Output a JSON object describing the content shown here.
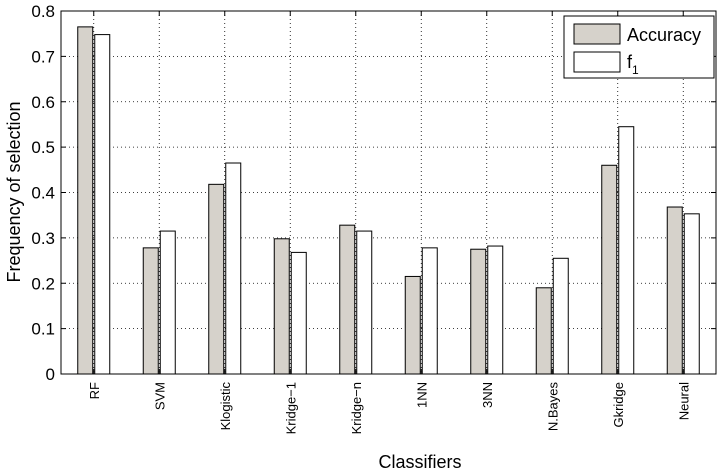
{
  "chart_data": {
    "type": "bar",
    "categories": [
      "RF",
      "SVM",
      "Klogistic",
      "Kridge−1",
      "Kridge−n",
      "1NN",
      "3NN",
      "N.Bayes",
      "Gkridge",
      "Neural"
    ],
    "series": [
      {
        "name": "Accuracy",
        "values": [
          0.765,
          0.278,
          0.418,
          0.298,
          0.328,
          0.215,
          0.275,
          0.19,
          0.46,
          0.368
        ],
        "color": "#d6d2cb"
      },
      {
        "name": "f",
        "name_subscript": "1",
        "values": [
          0.748,
          0.315,
          0.465,
          0.268,
          0.315,
          0.278,
          0.282,
          0.255,
          0.545,
          0.353
        ],
        "color": "#ffffff"
      }
    ],
    "xlabel": "Classifiers",
    "ylabel": "Frequency of selection",
    "ylim": [
      0,
      0.8
    ],
    "yticks": [
      "0",
      "0.1",
      "0.2",
      "0.3",
      "0.4",
      "0.5",
      "0.6",
      "0.7",
      "0.8"
    ],
    "grid": true,
    "legend_position": "top-right"
  }
}
